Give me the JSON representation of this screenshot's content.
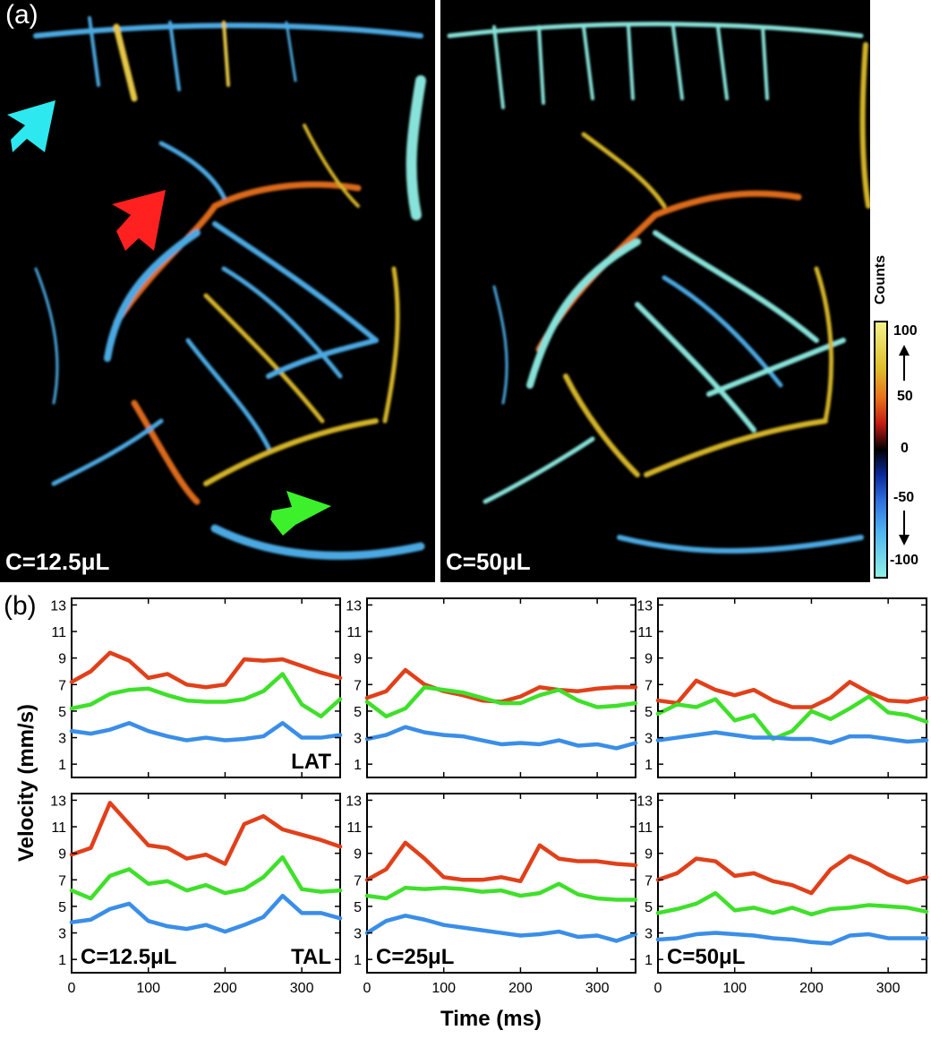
{
  "panel_a": {
    "letter": "(a)",
    "left_label": "C=12.5μL",
    "right_label": "C=50μL",
    "colorbar": {
      "title": "Counts",
      "ticks": [
        "100",
        "50",
        "0",
        "-50",
        "-100"
      ],
      "colors": [
        "#f2f28a",
        "#e0be2a",
        "#e86f1a",
        "#c21a14",
        "#000000",
        "#0a2a9c",
        "#2f6fe0",
        "#4fb3f0",
        "#8ff0e6"
      ]
    },
    "arrows": [
      {
        "name": "cyan-arrow",
        "color": "#2ee8f0"
      },
      {
        "name": "red-arrow",
        "color": "#ff2020"
      },
      {
        "name": "green-arrow",
        "color": "#3cf02c"
      }
    ]
  },
  "panel_b": {
    "letter": "(b)",
    "ylabel": "Velocity (mm/s)",
    "xlabel": "Time (ms)",
    "row_labels": [
      "LAT",
      "TAL"
    ],
    "col_labels": [
      "C=12.5μL",
      "C=25μL",
      "C=50μL"
    ],
    "y_ticks": [
      "13",
      "11",
      "9",
      "7",
      "5",
      "3",
      "1"
    ],
    "x_ticks": [
      "0",
      "100",
      "200",
      "300"
    ]
  },
  "chart_data": {
    "type": "line",
    "xlabel": "Time (ms)",
    "ylabel": "Velocity (mm/s)",
    "xlim": [
      0,
      350
    ],
    "ylim": [
      0,
      13.5
    ],
    "x": [
      0,
      25,
      50,
      75,
      100,
      125,
      150,
      175,
      200,
      225,
      250,
      275,
      300,
      325,
      350
    ],
    "series_colors": {
      "red": "#e0401a",
      "green": "#3fe02a",
      "blue": "#3a8ee8"
    },
    "panels": [
      {
        "row": "LAT",
        "concentration": "C=12.5μL",
        "series": [
          {
            "name": "red",
            "values": [
              7.2,
              8.0,
              9.4,
              8.8,
              7.5,
              7.8,
              7.0,
              6.8,
              7.0,
              8.9,
              8.8,
              8.9,
              8.4,
              7.9,
              7.5
            ]
          },
          {
            "name": "green",
            "values": [
              5.2,
              5.5,
              6.3,
              6.6,
              6.7,
              6.2,
              5.8,
              5.7,
              5.7,
              5.9,
              6.5,
              7.8,
              5.5,
              4.6,
              5.9
            ]
          },
          {
            "name": "blue",
            "values": [
              3.5,
              3.3,
              3.6,
              4.1,
              3.5,
              3.1,
              2.8,
              3.0,
              2.8,
              2.9,
              3.1,
              4.1,
              3.0,
              3.0,
              3.2
            ]
          }
        ]
      },
      {
        "row": "LAT",
        "concentration": "C=25μL",
        "series": [
          {
            "name": "red",
            "values": [
              6.0,
              6.5,
              8.1,
              7.0,
              6.5,
              6.2,
              5.8,
              5.7,
              6.1,
              6.8,
              6.6,
              6.5,
              6.7,
              6.8,
              6.8
            ]
          },
          {
            "name": "green",
            "values": [
              5.7,
              4.6,
              5.2,
              6.8,
              6.6,
              6.4,
              6.0,
              5.6,
              5.6,
              6.2,
              6.6,
              5.8,
              5.3,
              5.4,
              5.6
            ]
          },
          {
            "name": "blue",
            "values": [
              2.9,
              3.2,
              3.8,
              3.4,
              3.2,
              3.1,
              2.8,
              2.5,
              2.6,
              2.5,
              2.8,
              2.4,
              2.5,
              2.2,
              2.6
            ]
          }
        ]
      },
      {
        "row": "LAT",
        "concentration": "C=50μL",
        "series": [
          {
            "name": "red",
            "values": [
              5.8,
              5.6,
              7.3,
              6.6,
              6.2,
              6.6,
              5.8,
              5.3,
              5.3,
              6.0,
              7.2,
              6.4,
              5.8,
              5.7,
              6.0
            ]
          },
          {
            "name": "green",
            "values": [
              4.8,
              5.5,
              5.3,
              5.9,
              4.3,
              4.7,
              2.9,
              3.5,
              5.0,
              4.4,
              5.2,
              6.1,
              4.9,
              4.7,
              4.2
            ]
          },
          {
            "name": "blue",
            "values": [
              2.8,
              3.0,
              3.2,
              3.4,
              3.2,
              3.0,
              3.0,
              2.9,
              2.9,
              2.6,
              3.1,
              3.1,
              2.9,
              2.7,
              2.8
            ]
          }
        ]
      },
      {
        "row": "TAL",
        "concentration": "C=12.5μL",
        "series": [
          {
            "name": "red",
            "values": [
              8.9,
              9.4,
              12.8,
              11.2,
              9.6,
              9.4,
              8.6,
              8.9,
              8.2,
              11.2,
              11.8,
              10.8,
              10.4,
              10.0,
              9.5
            ]
          },
          {
            "name": "green",
            "values": [
              6.2,
              5.6,
              7.3,
              7.8,
              6.7,
              6.9,
              6.2,
              6.6,
              6.0,
              6.3,
              7.2,
              8.7,
              6.3,
              6.1,
              6.2
            ]
          },
          {
            "name": "blue",
            "values": [
              3.8,
              4.0,
              4.8,
              5.2,
              3.9,
              3.5,
              3.3,
              3.6,
              3.1,
              3.6,
              4.2,
              5.8,
              4.5,
              4.5,
              4.1
            ]
          }
        ]
      },
      {
        "row": "TAL",
        "concentration": "C=25μL",
        "series": [
          {
            "name": "red",
            "values": [
              7.0,
              7.8,
              9.8,
              8.6,
              7.2,
              7.0,
              7.0,
              7.2,
              6.9,
              9.6,
              8.6,
              8.4,
              8.4,
              8.2,
              8.1
            ]
          },
          {
            "name": "green",
            "values": [
              5.8,
              5.6,
              6.4,
              6.3,
              6.4,
              6.3,
              6.1,
              6.2,
              5.8,
              6.0,
              6.7,
              5.9,
              5.6,
              5.5,
              5.5
            ]
          },
          {
            "name": "blue",
            "values": [
              3.0,
              3.9,
              4.3,
              4.0,
              3.6,
              3.4,
              3.2,
              3.0,
              2.8,
              2.9,
              3.1,
              2.7,
              2.8,
              2.4,
              2.9
            ]
          }
        ]
      },
      {
        "row": "TAL",
        "concentration": "C=50μL",
        "series": [
          {
            "name": "red",
            "values": [
              7.0,
              7.5,
              8.6,
              8.4,
              7.3,
              7.5,
              6.9,
              6.6,
              6.0,
              7.8,
              8.8,
              8.2,
              7.4,
              6.8,
              7.2
            ]
          },
          {
            "name": "green",
            "values": [
              4.5,
              4.8,
              5.2,
              6.0,
              4.7,
              4.9,
              4.5,
              4.9,
              4.4,
              4.8,
              4.9,
              5.1,
              5.0,
              4.9,
              4.6
            ]
          },
          {
            "name": "blue",
            "values": [
              2.5,
              2.6,
              2.9,
              3.0,
              2.9,
              2.8,
              2.6,
              2.5,
              2.3,
              2.2,
              2.8,
              2.9,
              2.6,
              2.6,
              2.6
            ]
          }
        ]
      }
    ]
  }
}
